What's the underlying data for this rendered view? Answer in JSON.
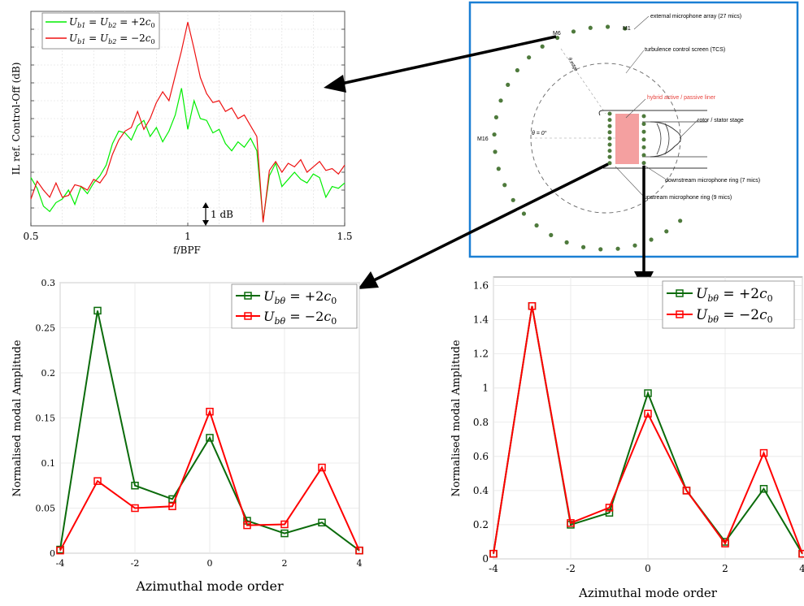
{
  "chart_data": [
    {
      "id": "il_spectrum",
      "type": "line",
      "xlabel": "f/BPF",
      "ylabel": "IL ref. Control-Off (dB)",
      "xlim": [
        0.5,
        1.5
      ],
      "xticks": [
        "0.5",
        "1",
        "1.5"
      ],
      "ylim": [
        0,
        12
      ],
      "ytick_labels_visible": false,
      "grid": true,
      "legend_position": "top-left",
      "annotation": "1 dB",
      "series": [
        {
          "name": "U_{b1} = U_{b2} = +2c_0",
          "color": "#00ee00",
          "x": [
            0.5,
            0.52,
            0.54,
            0.56,
            0.58,
            0.6,
            0.62,
            0.64,
            0.66,
            0.68,
            0.7,
            0.72,
            0.74,
            0.76,
            0.78,
            0.8,
            0.82,
            0.84,
            0.86,
            0.88,
            0.9,
            0.92,
            0.94,
            0.96,
            0.98,
            1.0,
            1.02,
            1.04,
            1.06,
            1.08,
            1.1,
            1.12,
            1.14,
            1.16,
            1.18,
            1.2,
            1.22,
            1.24,
            1.26,
            1.28,
            1.3,
            1.32,
            1.34,
            1.36,
            1.38,
            1.4,
            1.42,
            1.44,
            1.46,
            1.48,
            1.5
          ],
          "values": [
            2.7,
            2.1,
            1.1,
            0.8,
            1.3,
            1.5,
            2.0,
            1.2,
            2.2,
            1.8,
            2.4,
            2.8,
            3.4,
            4.6,
            5.3,
            5.2,
            4.8,
            5.6,
            5.9,
            5.0,
            5.5,
            4.7,
            5.3,
            6.2,
            7.7,
            5.4,
            7.0,
            6.0,
            5.9,
            5.2,
            5.4,
            4.6,
            4.2,
            4.7,
            4.4,
            4.9,
            4.2,
            0.3,
            2.8,
            3.5,
            2.2,
            2.6,
            3.0,
            2.6,
            2.4,
            2.9,
            2.7,
            1.6,
            2.2,
            2.1,
            2.4
          ]
        },
        {
          "name": "U_{b1} = U_{b2} = -2c_0",
          "color": "#ee1111",
          "x": [
            0.5,
            0.52,
            0.54,
            0.56,
            0.58,
            0.6,
            0.62,
            0.64,
            0.66,
            0.68,
            0.7,
            0.72,
            0.74,
            0.76,
            0.78,
            0.8,
            0.82,
            0.84,
            0.86,
            0.88,
            0.9,
            0.92,
            0.94,
            0.96,
            0.98,
            1.0,
            1.02,
            1.04,
            1.06,
            1.08,
            1.1,
            1.12,
            1.14,
            1.16,
            1.18,
            1.2,
            1.22,
            1.24,
            1.26,
            1.28,
            1.3,
            1.32,
            1.34,
            1.36,
            1.38,
            1.4,
            1.42,
            1.44,
            1.46,
            1.48,
            1.5
          ],
          "values": [
            1.5,
            2.5,
            2.0,
            1.6,
            2.4,
            1.6,
            1.7,
            2.3,
            2.2,
            2.0,
            2.6,
            2.4,
            2.9,
            4.0,
            4.8,
            5.3,
            5.5,
            6.4,
            5.4,
            6.0,
            6.9,
            7.5,
            7.0,
            8.4,
            9.8,
            11.4,
            9.9,
            8.3,
            7.4,
            6.9,
            7.0,
            6.4,
            6.6,
            6.0,
            6.2,
            5.6,
            5.0,
            0.2,
            3.1,
            3.6,
            3.0,
            3.5,
            3.3,
            3.7,
            3.0,
            3.3,
            3.6,
            3.1,
            3.2,
            2.9,
            3.4
          ]
        }
      ]
    },
    {
      "id": "modes_left",
      "type": "line",
      "xlabel": "Azimuthal mode order",
      "ylabel": "Normalised modal Amplitude",
      "xlim": [
        -4,
        4
      ],
      "ylim": [
        0,
        0.3
      ],
      "xticks": [
        "-4",
        "-2",
        "0",
        "2",
        "4"
      ],
      "yticks": [
        "0",
        "0.05",
        "0.1",
        "0.15",
        "0.2",
        "0.25",
        "0.3"
      ],
      "grid": true,
      "legend_position": "top-right",
      "categories": [
        -4,
        -3,
        -2,
        -1,
        0,
        1,
        2,
        3,
        4
      ],
      "series": [
        {
          "name": "U_{bθ} = +2c_0",
          "color": "#0b6b0b",
          "values": [
            0.004,
            0.269,
            0.075,
            0.06,
            0.128,
            0.036,
            0.022,
            0.034,
            0.003
          ]
        },
        {
          "name": "U_{bθ} = -2c_0",
          "color": "#ff0000",
          "values": [
            0.003,
            0.08,
            0.05,
            0.052,
            0.157,
            0.031,
            0.032,
            0.095,
            0.003
          ]
        }
      ]
    },
    {
      "id": "modes_right",
      "type": "line",
      "xlabel": "Azimuthal mode order",
      "ylabel": "Normalised modal Amplitude",
      "xlim": [
        -4,
        4
      ],
      "ylim": [
        0,
        1.65
      ],
      "xticks": [
        "-4",
        "-2",
        "0",
        "2",
        "4"
      ],
      "yticks": [
        "0",
        "0.2",
        "0.4",
        "0.6",
        "0.8",
        "1",
        "1.2",
        "1.4",
        "1.6"
      ],
      "grid": true,
      "legend_position": "top-right",
      "categories": [
        -4,
        -3,
        -2,
        -1,
        0,
        1,
        2,
        3,
        4
      ],
      "series": [
        {
          "name": "U_{bθ} = +2c_0",
          "color": "#0b6b0b",
          "values": [
            0.03,
            1.48,
            0.2,
            0.27,
            0.97,
            0.4,
            0.1,
            0.41,
            0.03
          ]
        },
        {
          "name": "U_{bθ} = -2c_0",
          "color": "#ff0000",
          "values": [
            0.03,
            1.48,
            0.21,
            0.3,
            0.85,
            0.4,
            0.09,
            0.62,
            0.03
          ]
        }
      ]
    }
  ],
  "schematic": {
    "external_array": "external microphone array (27 mics)",
    "tcs": "turbulence control screen (TCS)",
    "liner": "hybrid active / passive liner",
    "rotor": "rotor / stator stage",
    "downstream": "downstream microphone ring (7 mics)",
    "upstream": "upstream microphone ring (9 mics)",
    "m1": "M1",
    "m6": "M6",
    "m16": "M16",
    "theta0": "θ = 0°",
    "theta_edge": "θ edge",
    "frame_color": "#1a7fd4",
    "liner_color": "#f4a0a0",
    "dot_color": "#4e7a3c",
    "liner_text_color": "#e8433e"
  }
}
